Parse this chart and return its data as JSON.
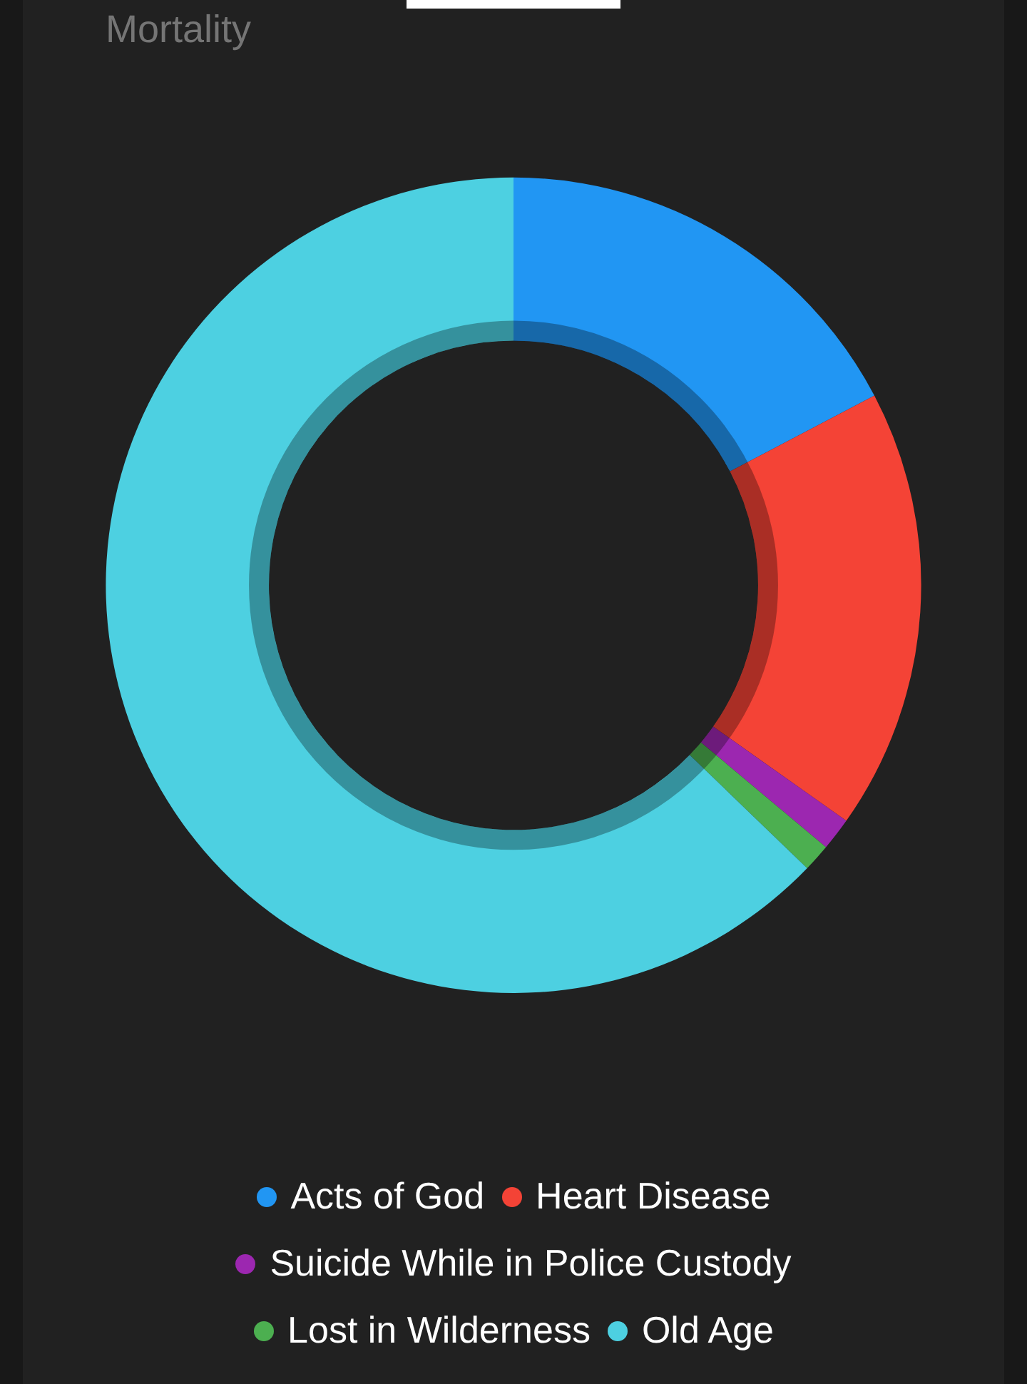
{
  "chart_data": {
    "type": "donut",
    "title": "Mortality",
    "categories": [
      "Acts of God",
      "Heart Disease",
      "Suicide While in Police Custody",
      "Lost in Wilderness",
      "Old Age"
    ],
    "values": [
      17.3,
      17.5,
      1.3,
      1.1,
      62.8
    ],
    "colors": [
      "#2196f3",
      "#f44336",
      "#9c27b0",
      "#4caf50",
      "#4dd0e1"
    ],
    "legend": "bottom"
  }
}
